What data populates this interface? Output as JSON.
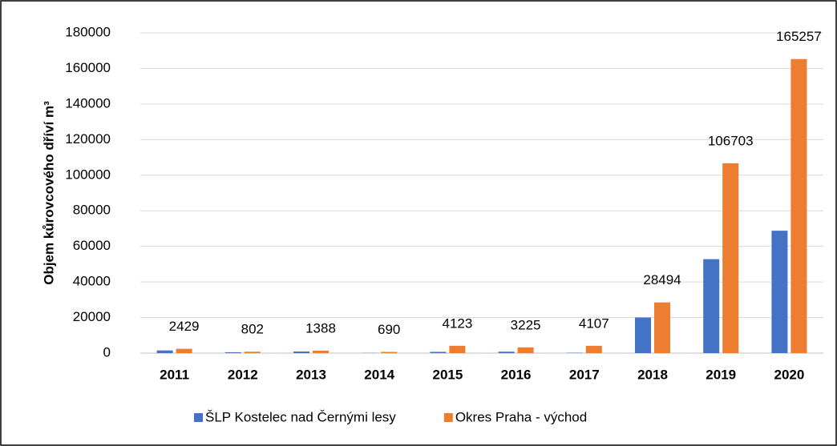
{
  "chart_data": {
    "type": "bar",
    "y_axis_label": "Objem kůrovcového dříví m³",
    "categories": [
      "2011",
      "2012",
      "2013",
      "2014",
      "2015",
      "2016",
      "2017",
      "2018",
      "2019",
      "2020"
    ],
    "series": [
      {
        "name": "ŠLP Kostelec nad Černými lesy",
        "color": "#4472c4",
        "data_labels": false,
        "values": [
          1500,
          500,
          900,
          100,
          700,
          800,
          200,
          20000,
          52800,
          68800
        ]
      },
      {
        "name": "Okres Praha - východ",
        "color": "#ed7d31",
        "data_labels": true,
        "values": [
          2429,
          802,
          1388,
          690,
          4123,
          3225,
          4107,
          28494,
          106703,
          165257
        ]
      }
    ],
    "ylim": [
      0,
      180000
    ],
    "yticks": [
      0,
      20000,
      40000,
      60000,
      80000,
      100000,
      120000,
      140000,
      160000,
      180000
    ],
    "grid": true,
    "legend": "bottom"
  }
}
